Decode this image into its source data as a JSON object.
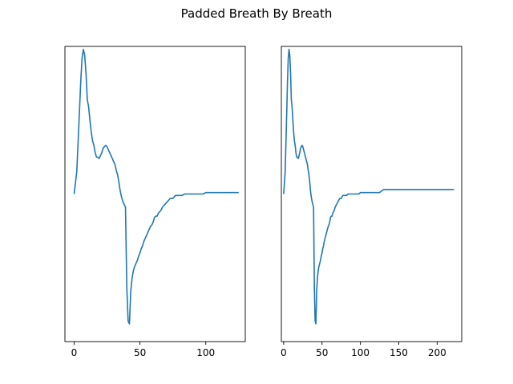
{
  "figure": {
    "title": "Padded Breath By Breath"
  },
  "chart_data": [
    {
      "type": "line",
      "title": "",
      "xlabel": "",
      "ylabel": "",
      "xlim": [
        -7,
        130
      ],
      "ylim": [
        -1.0,
        1.0
      ],
      "xticks": [
        0,
        50,
        100
      ],
      "yticks": [],
      "grid": false,
      "series": [
        {
          "color": "#1f77b4",
          "x": [
            0,
            2,
            4,
            5,
            6,
            7,
            8,
            9,
            10,
            11,
            12,
            13,
            14,
            15,
            16,
            17,
            18,
            19,
            20,
            21,
            22,
            23,
            24,
            25,
            26,
            27,
            28,
            29,
            30,
            31,
            32,
            33,
            34,
            35,
            36,
            37,
            38,
            39,
            40,
            41,
            42,
            43,
            44,
            45,
            46,
            47,
            48,
            49,
            50,
            51,
            52,
            53,
            54,
            55,
            56,
            57,
            58,
            59,
            60,
            61,
            62,
            63,
            64,
            65,
            66,
            67,
            68,
            69,
            70,
            71,
            72,
            73,
            74,
            75,
            76,
            77,
            78,
            79,
            80,
            82,
            84,
            86,
            88,
            90,
            92,
            94,
            96,
            98,
            100,
            102,
            104,
            106,
            108,
            110,
            112,
            114,
            116,
            118,
            120,
            122,
            124,
            125
          ],
          "y": [
            0.0,
            0.15,
            0.55,
            0.76,
            0.92,
            0.98,
            0.94,
            0.82,
            0.64,
            0.59,
            0.5,
            0.42,
            0.36,
            0.33,
            0.28,
            0.25,
            0.25,
            0.24,
            0.26,
            0.28,
            0.31,
            0.32,
            0.33,
            0.32,
            0.3,
            0.28,
            0.26,
            0.24,
            0.22,
            0.2,
            0.16,
            0.13,
            0.08,
            0.02,
            -0.02,
            -0.05,
            -0.07,
            -0.09,
            -0.63,
            -0.86,
            -0.88,
            -0.66,
            -0.57,
            -0.52,
            -0.49,
            -0.47,
            -0.45,
            -0.42,
            -0.4,
            -0.37,
            -0.35,
            -0.32,
            -0.3,
            -0.28,
            -0.26,
            -0.24,
            -0.22,
            -0.21,
            -0.19,
            -0.16,
            -0.15,
            -0.15,
            -0.13,
            -0.12,
            -0.11,
            -0.09,
            -0.08,
            -0.07,
            -0.06,
            -0.05,
            -0.04,
            -0.03,
            -0.03,
            -0.03,
            -0.02,
            -0.01,
            -0.01,
            -0.01,
            -0.01,
            -0.01,
            0.0,
            0.0,
            0.0,
            0.0,
            0.0,
            0.0,
            0.0,
            0.0,
            0.01,
            0.01,
            0.01,
            0.01,
            0.01,
            0.01,
            0.01,
            0.01,
            0.01,
            0.01,
            0.01,
            0.01,
            0.01,
            0.01
          ]
        }
      ]
    },
    {
      "type": "line",
      "title": "",
      "xlabel": "",
      "ylabel": "",
      "xlim": [
        -3,
        232
      ],
      "ylim": [
        -1.0,
        1.0
      ],
      "xticks": [
        0,
        50,
        100,
        150,
        200
      ],
      "yticks": [],
      "grid": false,
      "series": [
        {
          "color": "#1f77b4",
          "x": [
            0,
            2,
            4,
            5,
            6,
            7,
            8,
            9,
            10,
            11,
            12,
            13,
            14,
            15,
            16,
            17,
            18,
            19,
            20,
            21,
            22,
            23,
            24,
            25,
            26,
            27,
            28,
            29,
            30,
            31,
            32,
            33,
            34,
            35,
            36,
            37,
            38,
            39,
            40,
            41,
            42,
            43,
            44,
            45,
            46,
            47,
            48,
            49,
            50,
            51,
            52,
            53,
            54,
            55,
            56,
            57,
            58,
            59,
            60,
            61,
            62,
            63,
            64,
            65,
            66,
            67,
            68,
            69,
            70,
            71,
            72,
            73,
            74,
            75,
            76,
            77,
            78,
            79,
            80,
            82,
            84,
            86,
            88,
            90,
            92,
            94,
            96,
            98,
            100,
            102,
            104,
            106,
            108,
            110,
            112,
            114,
            116,
            118,
            120,
            122,
            124,
            125,
            130,
            150,
            170,
            190,
            210,
            222
          ],
          "y": [
            0.0,
            0.15,
            0.55,
            0.76,
            0.92,
            0.98,
            0.94,
            0.82,
            0.64,
            0.59,
            0.5,
            0.42,
            0.36,
            0.33,
            0.28,
            0.25,
            0.25,
            0.24,
            0.26,
            0.28,
            0.31,
            0.32,
            0.33,
            0.32,
            0.3,
            0.28,
            0.26,
            0.24,
            0.22,
            0.2,
            0.16,
            0.13,
            0.08,
            0.02,
            -0.02,
            -0.05,
            -0.07,
            -0.09,
            -0.63,
            -0.86,
            -0.88,
            -0.66,
            -0.57,
            -0.52,
            -0.49,
            -0.47,
            -0.45,
            -0.42,
            -0.4,
            -0.37,
            -0.35,
            -0.32,
            -0.3,
            -0.28,
            -0.26,
            -0.24,
            -0.22,
            -0.21,
            -0.19,
            -0.16,
            -0.15,
            -0.15,
            -0.13,
            -0.12,
            -0.11,
            -0.09,
            -0.08,
            -0.07,
            -0.06,
            -0.05,
            -0.04,
            -0.03,
            -0.03,
            -0.03,
            -0.02,
            -0.01,
            -0.01,
            -0.01,
            -0.01,
            -0.01,
            0.0,
            0.0,
            0.0,
            0.0,
            0.0,
            0.0,
            0.0,
            0.0,
            0.01,
            0.01,
            0.01,
            0.01,
            0.01,
            0.01,
            0.01,
            0.01,
            0.01,
            0.01,
            0.01,
            0.01,
            0.01,
            0.01,
            0.03,
            0.03,
            0.03,
            0.03,
            0.03,
            0.03
          ]
        }
      ]
    }
  ]
}
